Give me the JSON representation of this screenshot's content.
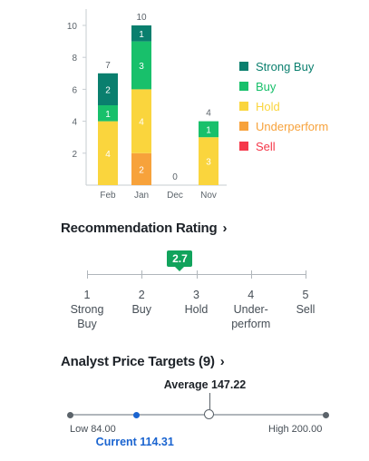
{
  "chart_data": {
    "type": "bar",
    "stacked": true,
    "categories": [
      "Feb",
      "Jan",
      "Dec",
      "Nov"
    ],
    "totals": [
      7,
      10,
      0,
      4
    ],
    "series": [
      {
        "name": "Strong Buy",
        "color": "#0a7f6e",
        "values": [
          2,
          1,
          0,
          0
        ]
      },
      {
        "name": "Buy",
        "color": "#18c06b",
        "values": [
          1,
          3,
          0,
          1
        ]
      },
      {
        "name": "Hold",
        "color": "#fad53d",
        "values": [
          4,
          4,
          0,
          3
        ]
      },
      {
        "name": "Underperform",
        "color": "#f7a23b",
        "values": [
          0,
          2,
          0,
          0
        ]
      },
      {
        "name": "Sell",
        "color": "#f5384a",
        "values": [
          0,
          0,
          0,
          0
        ]
      }
    ],
    "y_ticks": [
      "2",
      "4",
      "6",
      "8",
      "10"
    ],
    "ylim": [
      0,
      11
    ],
    "legend_position": "right",
    "grid": false
  },
  "recommendation": {
    "title": "Recommendation Rating",
    "value": "2.7",
    "value_num": 2.7,
    "scale": [
      {
        "num": "1",
        "lines": [
          "Strong",
          "Buy"
        ]
      },
      {
        "num": "2",
        "lines": [
          "Buy"
        ]
      },
      {
        "num": "3",
        "lines": [
          "Hold"
        ]
      },
      {
        "num": "4",
        "lines": [
          "Under-",
          "perform"
        ]
      },
      {
        "num": "5",
        "lines": [
          "Sell"
        ]
      }
    ]
  },
  "price_targets": {
    "title": "Analyst Price Targets (9)",
    "low_label": "Low 84.00",
    "high_label": "High 200.00",
    "average_label": "Average 147.22",
    "current_label": "Current 114.31",
    "low": 84.0,
    "high": 200.0,
    "average": 147.22,
    "current": 114.31
  },
  "colors": {
    "axis": "#c7cdd2",
    "tick_text": "#5b636a",
    "rating_badge": "#11a35c",
    "current": "#1a64d0"
  },
  "icons": {
    "chevron": "chevron-right-icon"
  }
}
